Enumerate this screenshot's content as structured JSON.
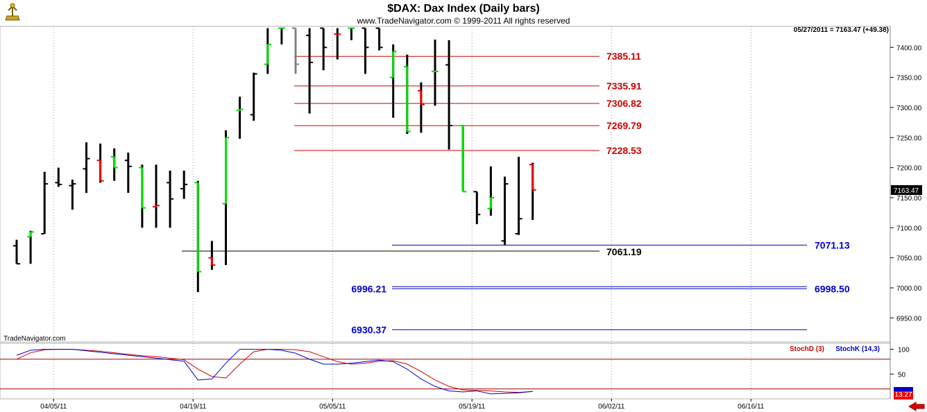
{
  "header": {
    "title": "$DAX:  Dax Index  (Daily bars)",
    "copyright": "www.TradeNavigator.com © 1999-2011 All rights reserved",
    "last_quote": "05/27/2011 = 7163.47 (+49.38)",
    "price_badge": "7163.47",
    "watermark": "TradeNavigator.com"
  },
  "colors": {
    "up": "#00dd00",
    "down": "#ee0000",
    "neutral": "#000000",
    "gray": "#808080",
    "red_level": "#cc0000",
    "blue_level": "#0000cc",
    "stoch_d": "#cc0000",
    "stoch_k": "#0000cc"
  },
  "chart_data": {
    "type": "ohlc",
    "y_axis": {
      "min": 6910,
      "max": 7435,
      "ticks": [
        6950,
        7000,
        7050,
        7100,
        7150,
        7200,
        7250,
        7300,
        7350,
        7400
      ]
    },
    "x_axis": {
      "tick_labels": [
        "04/05/11",
        "04/19/11",
        "05/05/11",
        "05/19/11",
        "06/02/11",
        "06/16/11"
      ],
      "tick_bar_index": [
        2.5,
        12.5,
        22.5,
        32.5,
        42.5,
        52.5
      ]
    },
    "bars": [
      {
        "o": 7070,
        "h": 7080,
        "l": 7040,
        "c": 7040,
        "color": "neutral"
      },
      {
        "o": 7085,
        "h": 7095,
        "l": 7040,
        "c": 7093,
        "color": "up"
      },
      {
        "o": 7090,
        "h": 7193,
        "l": 7090,
        "c": 7173,
        "color": "neutral"
      },
      {
        "o": 7175,
        "h": 7200,
        "l": 7168,
        "c": 7172,
        "color": "neutral"
      },
      {
        "o": 7170,
        "h": 7180,
        "l": 7130,
        "c": 7173,
        "color": "neutral"
      },
      {
        "o": 7198,
        "h": 7242,
        "l": 7158,
        "c": 7215,
        "color": "neutral"
      },
      {
        "o": 7212,
        "h": 7240,
        "l": 7175,
        "c": 7178,
        "color": "down"
      },
      {
        "o": 7218,
        "h": 7232,
        "l": 7178,
        "c": 7200,
        "color": "up"
      },
      {
        "o": 7212,
        "h": 7225,
        "l": 7158,
        "c": 7202,
        "color": "neutral"
      },
      {
        "o": 7200,
        "h": 7205,
        "l": 7100,
        "c": 7133,
        "color": "up"
      },
      {
        "o": 7135,
        "h": 7205,
        "l": 7100,
        "c": 7137,
        "color": "down"
      },
      {
        "o": 7175,
        "h": 7195,
        "l": 7100,
        "c": 7148,
        "color": "neutral"
      },
      {
        "o": 7165,
        "h": 7195,
        "l": 7148,
        "c": 7172,
        "color": "neutral"
      },
      {
        "o": 7175,
        "h": 7178,
        "l": 6993,
        "c": 7027,
        "color": "up"
      },
      {
        "o": 7050,
        "h": 7078,
        "l": 7030,
        "c": 7038,
        "color": "down"
      },
      {
        "o": 7140,
        "h": 7262,
        "l": 7038,
        "c": 7250,
        "color": "up"
      },
      {
        "o": 7295,
        "h": 7318,
        "l": 7248,
        "c": 7297,
        "color": "up"
      },
      {
        "o": 7288,
        "h": 7358,
        "l": 7278,
        "c": 7356,
        "color": "neutral"
      },
      {
        "o": 7372,
        "h": 7432,
        "l": 7356,
        "c": 7405,
        "color": "up"
      },
      {
        "o": 7432,
        "h": 7432,
        "l": 7405,
        "c": 7432,
        "color": "up"
      },
      {
        "o": 7432,
        "h": 7432,
        "l": 7356,
        "c": 7372,
        "color": "gray"
      },
      {
        "o": 7420,
        "h": 7432,
        "l": 7290,
        "c": 7375,
        "color": "neutral"
      },
      {
        "o": 7432,
        "h": 7432,
        "l": 7362,
        "c": 7400,
        "color": "neutral"
      },
      {
        "o": 7422,
        "h": 7432,
        "l": 7380,
        "c": 7422,
        "color": "down"
      },
      {
        "o": 7432,
        "h": 7432,
        "l": 7412,
        "c": 7432,
        "color": "up"
      },
      {
        "o": 7432,
        "h": 7432,
        "l": 7356,
        "c": 7400,
        "color": "neutral"
      },
      {
        "o": 7432,
        "h": 7432,
        "l": 7395,
        "c": 7400,
        "color": "neutral"
      },
      {
        "o": 7350,
        "h": 7405,
        "l": 7283,
        "c": 7393,
        "color": "up"
      },
      {
        "o": 7368,
        "h": 7388,
        "l": 7256,
        "c": 7260,
        "color": "up"
      },
      {
        "o": 7328,
        "h": 7342,
        "l": 7258,
        "c": 7305,
        "color": "down"
      },
      {
        "o": 7360,
        "h": 7413,
        "l": 7303,
        "c": 7360,
        "color": "up"
      },
      {
        "o": 7371,
        "h": 7412,
        "l": 7230,
        "c": 7270,
        "color": "neutral"
      },
      {
        "o": 7270,
        "h": 7268,
        "l": 7162,
        "c": 7160,
        "color": "up"
      },
      {
        "o": 7160,
        "h": 7160,
        "l": 7106,
        "c": 7122,
        "color": "neutral"
      },
      {
        "o": 7132,
        "h": 7202,
        "l": 7120,
        "c": 7150,
        "color": "up"
      },
      {
        "o": 7078,
        "h": 7185,
        "l": 7071,
        "c": 7173,
        "color": "neutral"
      },
      {
        "o": 7090,
        "h": 7218,
        "l": 7088,
        "c": 7115,
        "color": "neutral"
      },
      {
        "o": 7205,
        "h": 7208,
        "l": 7113,
        "c": 7163,
        "color": "down"
      }
    ],
    "red_levels": [
      {
        "value": 7385.11,
        "label": "7385.11"
      },
      {
        "value": 7335.91,
        "label": "7335.91"
      },
      {
        "value": 7306.82,
        "label": "7306.82"
      },
      {
        "value": 7269.79,
        "label": "7269.79"
      },
      {
        "value": 7228.53,
        "label": "7228.53"
      }
    ],
    "black_level": {
      "value": 7061.19,
      "label": "7061.19"
    },
    "blue_levels": [
      {
        "value": 7071.13,
        "label_right": "7071.13",
        "label_left": ""
      },
      {
        "value": 6998.5,
        "label_right": "6998.50",
        "label_left": "6996.21",
        "double": true
      },
      {
        "value": 6930.37,
        "label_right": "",
        "label_left": "6930.37"
      }
    ],
    "stochastic": {
      "legend_d": "StochD (3)",
      "legend_k": "StochK (14,3)",
      "ticks": [
        "100",
        "50"
      ],
      "levels": [
        80,
        20
      ],
      "last_value": "13.27",
      "d": [
        80,
        93,
        99,
        100,
        100,
        98,
        96,
        93,
        90,
        87,
        85,
        82,
        79,
        60,
        45,
        42,
        70,
        95,
        100,
        100,
        99,
        95,
        85,
        75,
        70,
        72,
        76,
        77,
        70,
        55,
        38,
        25,
        18,
        17,
        16,
        14,
        13,
        15
      ],
      "k": [
        88,
        98,
        100,
        100,
        100,
        97,
        94,
        91,
        88,
        85,
        82,
        79,
        76,
        38,
        40,
        72,
        100,
        100,
        100,
        98,
        92,
        80,
        70,
        70,
        72,
        75,
        78,
        75,
        60,
        40,
        25,
        16,
        14,
        16,
        10,
        11,
        12,
        15
      ]
    }
  }
}
